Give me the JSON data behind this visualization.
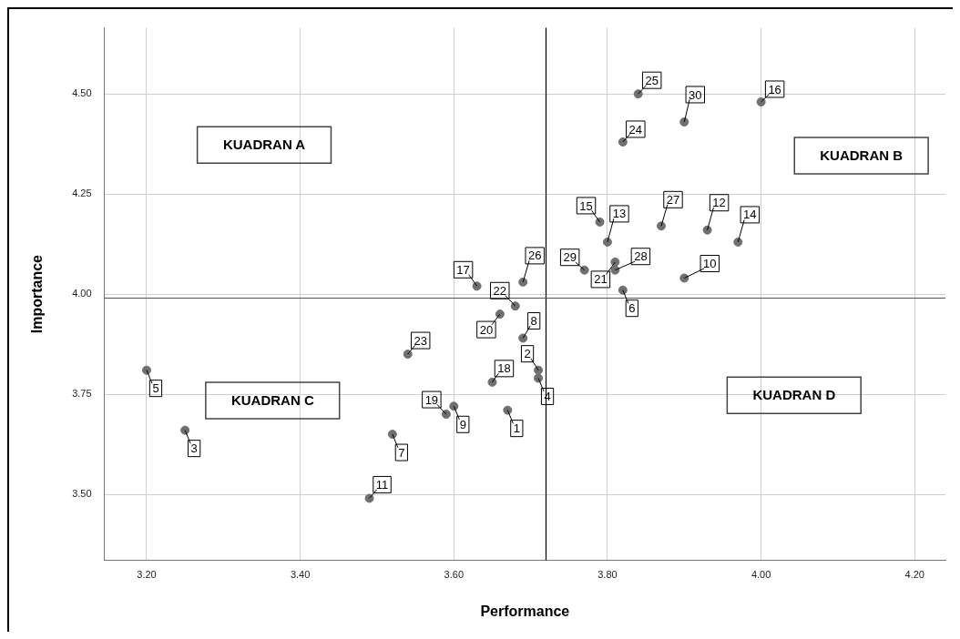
{
  "chart_data": {
    "type": "scatter",
    "xlabel": "Performance",
    "ylabel": "Importance",
    "xlim": [
      3.145,
      4.24
    ],
    "ylim": [
      3.335,
      4.665
    ],
    "xticks": [
      {
        "value": 3.2,
        "label": "3.20"
      },
      {
        "value": 3.4,
        "label": "3.40"
      },
      {
        "value": 3.6,
        "label": "3.60"
      },
      {
        "value": 3.8,
        "label": "3.80"
      },
      {
        "value": 4.0,
        "label": "4.00"
      },
      {
        "value": 4.2,
        "label": "4.20"
      }
    ],
    "yticks": [
      {
        "value": 3.5,
        "label": "3.50"
      },
      {
        "value": 3.75,
        "label": "3.75"
      },
      {
        "value": 4.0,
        "label": "4.00"
      },
      {
        "value": 4.25,
        "label": "4.25"
      },
      {
        "value": 4.5,
        "label": "4.50"
      }
    ],
    "grid": true,
    "legend": false,
    "marker": "circle",
    "series": [
      {
        "color": "#707070",
        "x": [
          3.67,
          3.71,
          3.25,
          3.71,
          3.2,
          3.82,
          3.52,
          3.69,
          3.6,
          3.9,
          3.49,
          3.93,
          3.8,
          3.97,
          3.79,
          4.0,
          3.63,
          3.65,
          3.59,
          3.66,
          3.81,
          3.68,
          3.54,
          3.82,
          3.84,
          3.69,
          3.87,
          3.81,
          3.77,
          3.9
        ],
        "values": [
          3.71,
          3.81,
          3.66,
          3.79,
          3.81,
          4.01,
          3.65,
          3.89,
          3.72,
          4.04,
          3.49,
          4.16,
          4.13,
          4.13,
          4.18,
          4.48,
          4.02,
          3.78,
          3.7,
          3.95,
          4.08,
          3.97,
          3.85,
          4.38,
          4.5,
          4.03,
          4.17,
          4.06,
          4.06,
          4.43
        ]
      }
    ],
    "ref_lines": [
      {
        "axis": "x",
        "value": 3.72,
        "color": "#000000"
      },
      {
        "axis": "y",
        "value": 3.99,
        "color": "#555555"
      }
    ],
    "annotations": [
      "KUADRAN A",
      "KUADRAN B",
      "KUADRAN C",
      "KUADRAN D",
      {
        "text": "1",
        "x": 3.67,
        "y": 3.71
      },
      {
        "text": "2",
        "x": 3.71,
        "y": 3.81
      },
      {
        "text": "3",
        "x": 3.25,
        "y": 3.66
      },
      {
        "text": "4",
        "x": 3.71,
        "y": 3.79
      },
      {
        "text": "5",
        "x": 3.2,
        "y": 3.81
      },
      {
        "text": "6",
        "x": 3.82,
        "y": 4.01
      },
      {
        "text": "7",
        "x": 3.52,
        "y": 3.65
      },
      {
        "text": "8",
        "x": 3.69,
        "y": 3.89
      },
      {
        "text": "9",
        "x": 3.6,
        "y": 3.72
      },
      {
        "text": "10",
        "x": 3.9,
        "y": 4.04
      },
      {
        "text": "11",
        "x": 3.49,
        "y": 3.49
      },
      {
        "text": "12",
        "x": 3.93,
        "y": 4.16
      },
      {
        "text": "13",
        "x": 3.8,
        "y": 4.13
      },
      {
        "text": "14",
        "x": 3.97,
        "y": 4.13
      },
      {
        "text": "15",
        "x": 3.79,
        "y": 4.18
      },
      {
        "text": "16",
        "x": 4.0,
        "y": 4.48
      },
      {
        "text": "17",
        "x": 3.63,
        "y": 4.02
      },
      {
        "text": "18",
        "x": 3.65,
        "y": 3.78
      },
      {
        "text": "19",
        "x": 3.59,
        "y": 3.7
      },
      {
        "text": "20",
        "x": 3.66,
        "y": 3.95
      },
      {
        "text": "21",
        "x": 3.81,
        "y": 4.08
      },
      {
        "text": "22",
        "x": 3.68,
        "y": 3.97
      },
      {
        "text": "23",
        "x": 3.54,
        "y": 3.85
      },
      {
        "text": "24",
        "x": 3.82,
        "y": 4.38
      },
      {
        "text": "25",
        "x": 3.84,
        "y": 4.5
      },
      {
        "text": "26",
        "x": 3.69,
        "y": 4.03
      },
      {
        "text": "27",
        "x": 3.87,
        "y": 4.17
      },
      {
        "text": "28",
        "x": 3.81,
        "y": 4.06
      },
      {
        "text": "29",
        "x": 3.77,
        "y": 4.06
      },
      {
        "text": "30",
        "x": 3.9,
        "y": 4.43
      }
    ]
  }
}
